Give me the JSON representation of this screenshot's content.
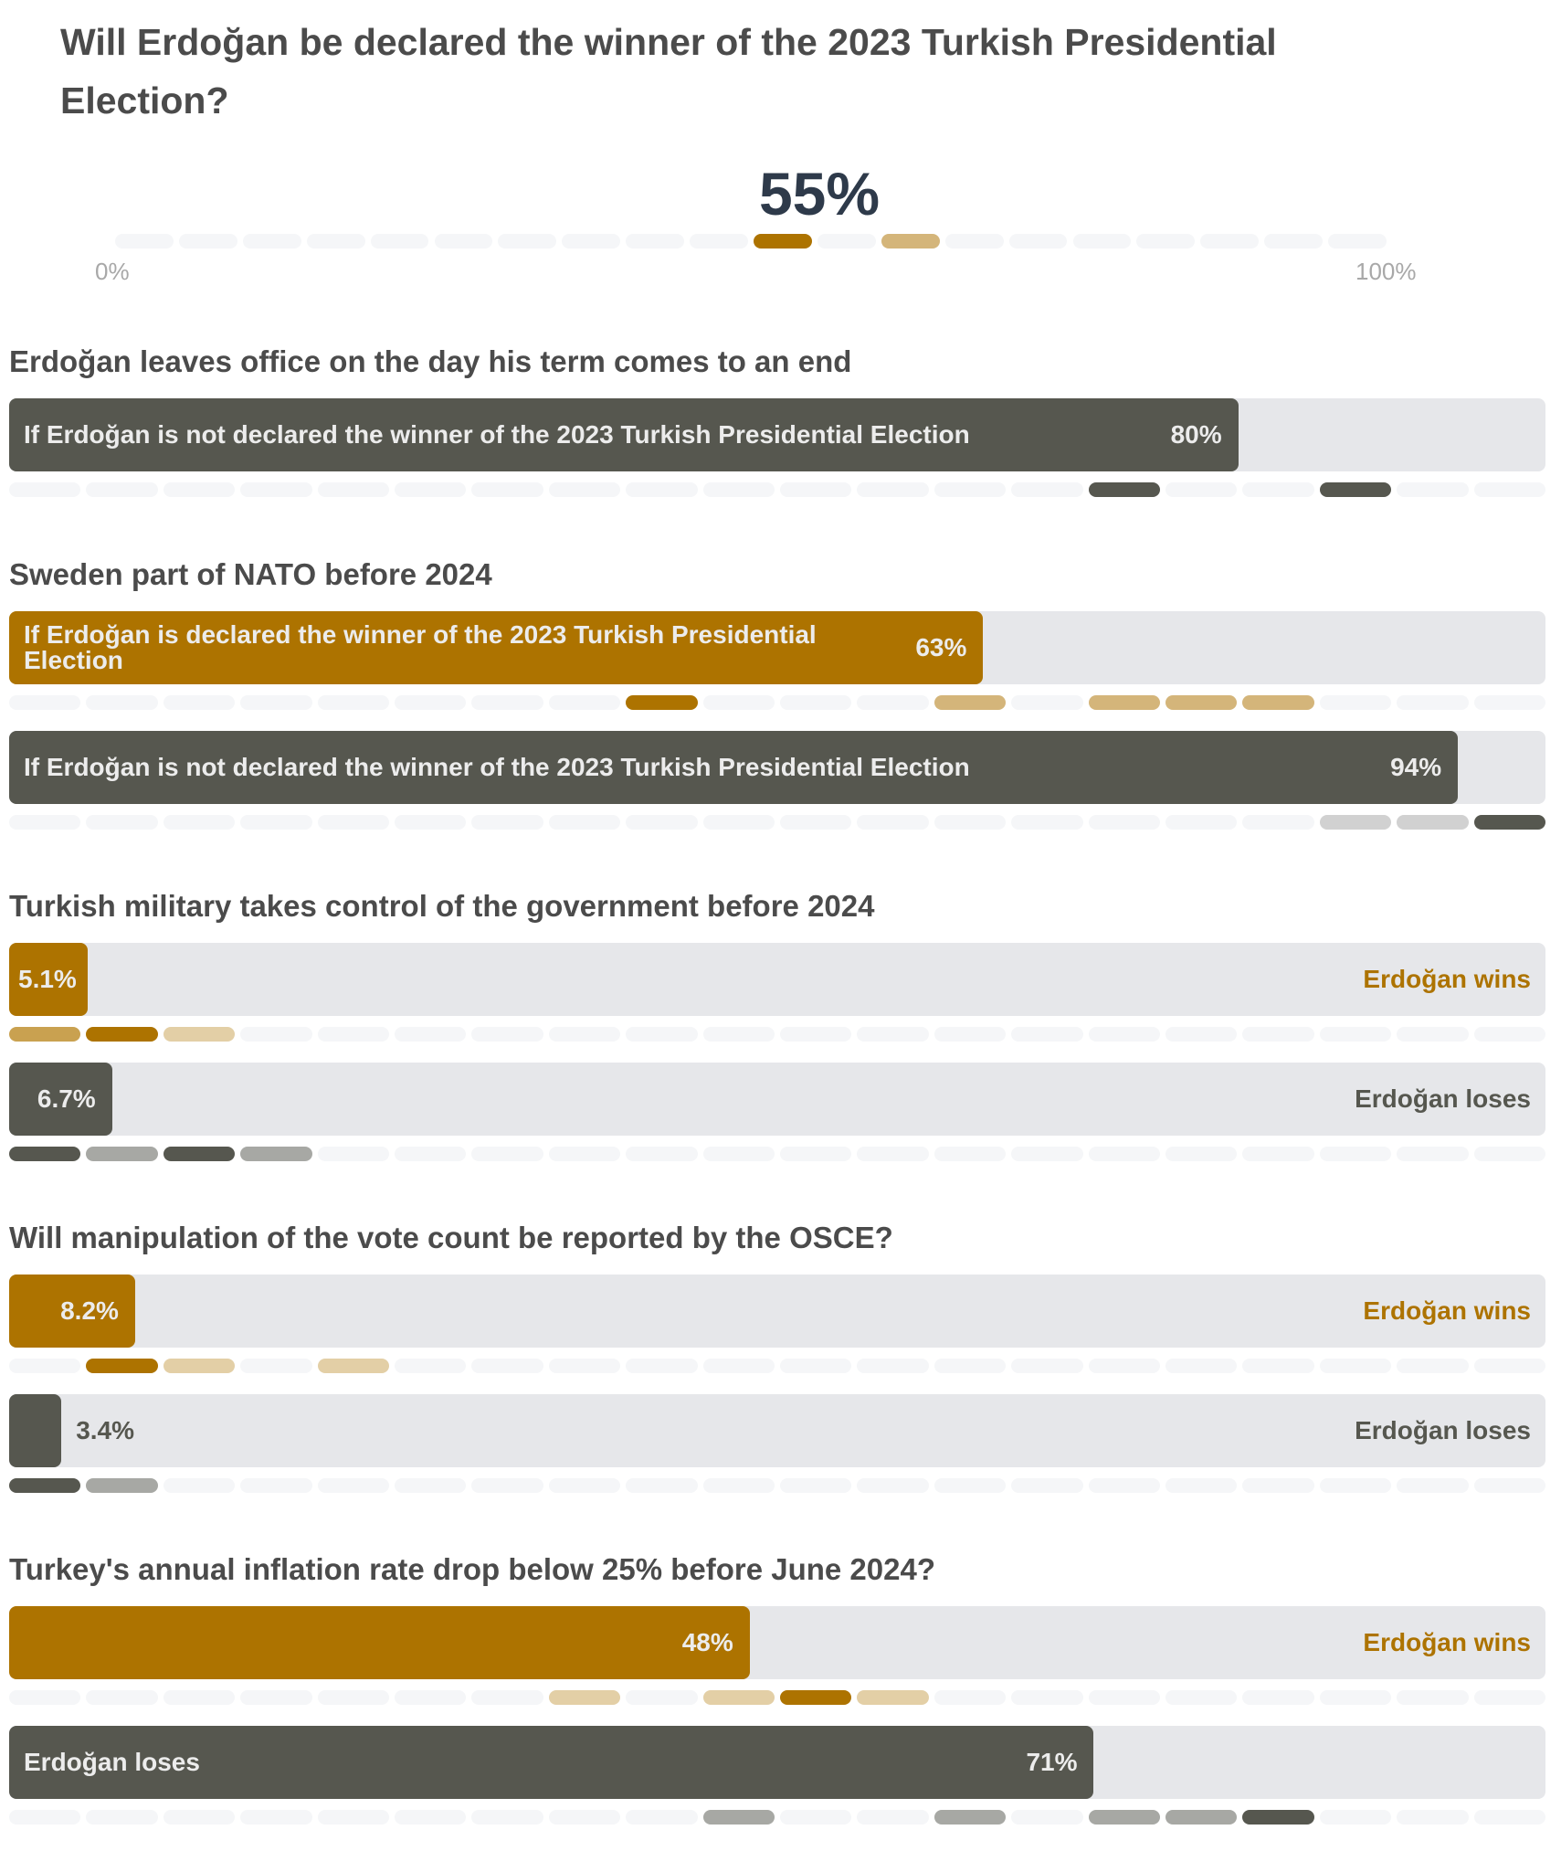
{
  "title": "Will Erdoğan be declared the winner of the 2023 Turkish Presidential Election?",
  "headline_value": "55%",
  "axis": {
    "min_label": "0%",
    "max_label": "100%"
  },
  "colors": {
    "gold": "#ad7300",
    "gold_mid": "#c9a150",
    "gold_light": "#d4b57a",
    "gold_pale": "#e3cfa6",
    "dark": "#56574f",
    "gray": "#a7a8a4",
    "gray_light": "#d1d1d1",
    "empty_segment": "#f5f6f8",
    "track": "#e6e7ea"
  },
  "main_distribution": {
    "segments": 20,
    "highlights": [
      {
        "index": 10,
        "tone": "gold"
      },
      {
        "index": 12,
        "tone": "gold_light"
      }
    ]
  },
  "sections": [
    {
      "title": "Erdoğan leaves office on the day his term comes to an end",
      "bars": [
        {
          "label": "If Erdoğan is not declared the winner of the 2023 Turkish Presidential Election",
          "value_label": "80%",
          "value": 80,
          "tone": "dark",
          "side_label": "",
          "highlights": [
            {
              "index": 14,
              "tone": "dark"
            },
            {
              "index": 17,
              "tone": "dark"
            }
          ]
        }
      ]
    },
    {
      "title": "Sweden part of NATO before 2024",
      "bars": [
        {
          "label": "If Erdoğan is declared the winner of the 2023 Turkish Presidential Election",
          "value_label": "63%",
          "value": 63.4,
          "tone": "gold",
          "side_label": "",
          "highlights": [
            {
              "index": 8,
              "tone": "gold"
            },
            {
              "index": 12,
              "tone": "gold_light"
            },
            {
              "index": 14,
              "tone": "gold_light"
            },
            {
              "index": 15,
              "tone": "gold_light"
            },
            {
              "index": 16,
              "tone": "gold_light"
            }
          ]
        },
        {
          "label": "If Erdoğan is not declared the winner of the 2023 Turkish Presidential Election",
          "value_label": "94%",
          "value": 94.3,
          "tone": "dark",
          "side_label": "",
          "highlights": [
            {
              "index": 17,
              "tone": "gray_light"
            },
            {
              "index": 18,
              "tone": "gray_light"
            },
            {
              "index": 19,
              "tone": "dark"
            }
          ]
        }
      ]
    },
    {
      "title": "Turkish military takes control of the government before 2024",
      "bars": [
        {
          "label": "",
          "value_label": "5.1%",
          "value": 5.1,
          "tone": "gold",
          "side_label": "Erdoğan wins",
          "highlights": [
            {
              "index": 0,
              "tone": "gold_mid"
            },
            {
              "index": 1,
              "tone": "gold"
            },
            {
              "index": 2,
              "tone": "gold_pale"
            }
          ]
        },
        {
          "label": "",
          "value_label": "6.7%",
          "value": 6.7,
          "tone": "dark",
          "side_label": "Erdoğan loses",
          "highlights": [
            {
              "index": 0,
              "tone": "dark"
            },
            {
              "index": 1,
              "tone": "gray"
            },
            {
              "index": 2,
              "tone": "dark"
            },
            {
              "index": 3,
              "tone": "gray"
            }
          ]
        }
      ]
    },
    {
      "title": "Will manipulation of the vote count be reported by the OSCE?",
      "bars": [
        {
          "label": "",
          "value_label": "8.2%",
          "value": 8.2,
          "tone": "gold",
          "side_label": "Erdoğan wins",
          "highlights": [
            {
              "index": 1,
              "tone": "gold"
            },
            {
              "index": 2,
              "tone": "gold_pale"
            },
            {
              "index": 4,
              "tone": "gold_pale"
            }
          ]
        },
        {
          "label": "",
          "value_label": "3.4%",
          "value": 3.4,
          "tone": "dark",
          "side_label": "Erdoğan loses",
          "highlights": [
            {
              "index": 0,
              "tone": "dark"
            },
            {
              "index": 1,
              "tone": "gray"
            }
          ]
        }
      ]
    },
    {
      "title": "Turkey's annual inflation rate drop below 25% before June 2024?",
      "bars": [
        {
          "label": "",
          "value_label": "48%",
          "value": 48.2,
          "tone": "gold",
          "side_label": "Erdoğan wins",
          "highlights": [
            {
              "index": 7,
              "tone": "gold_pale"
            },
            {
              "index": 9,
              "tone": "gold_pale"
            },
            {
              "index": 10,
              "tone": "gold"
            },
            {
              "index": 11,
              "tone": "gold_pale"
            }
          ]
        },
        {
          "label": "Erdoğan loses",
          "value_label": "71%",
          "value": 70.6,
          "tone": "dark",
          "side_label": "",
          "highlights": [
            {
              "index": 9,
              "tone": "gray"
            },
            {
              "index": 12,
              "tone": "gray"
            },
            {
              "index": 14,
              "tone": "gray"
            },
            {
              "index": 15,
              "tone": "gray"
            },
            {
              "index": 16,
              "tone": "dark"
            }
          ]
        }
      ]
    }
  ]
}
